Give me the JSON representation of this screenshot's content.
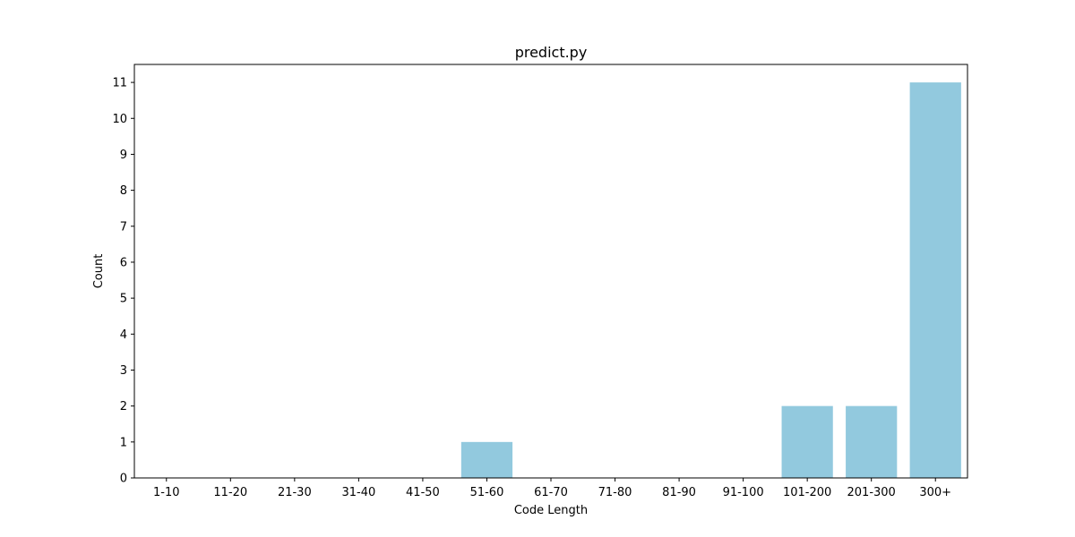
{
  "chart_data": {
    "type": "bar",
    "title": "predict.py",
    "xlabel": "Code Length",
    "ylabel": "Count",
    "categories": [
      "1-10",
      "11-20",
      "21-30",
      "31-40",
      "41-50",
      "51-60",
      "61-70",
      "71-80",
      "81-90",
      "91-100",
      "101-200",
      "201-300",
      "300+"
    ],
    "values": [
      0,
      0,
      0,
      0,
      0,
      1,
      0,
      0,
      0,
      0,
      2,
      2,
      11
    ],
    "ylim": [
      0,
      11.5
    ],
    "yticks": [
      0,
      1,
      2,
      3,
      4,
      5,
      6,
      7,
      8,
      9,
      10,
      11
    ],
    "grid": false,
    "bar_color": "#92c9de"
  }
}
